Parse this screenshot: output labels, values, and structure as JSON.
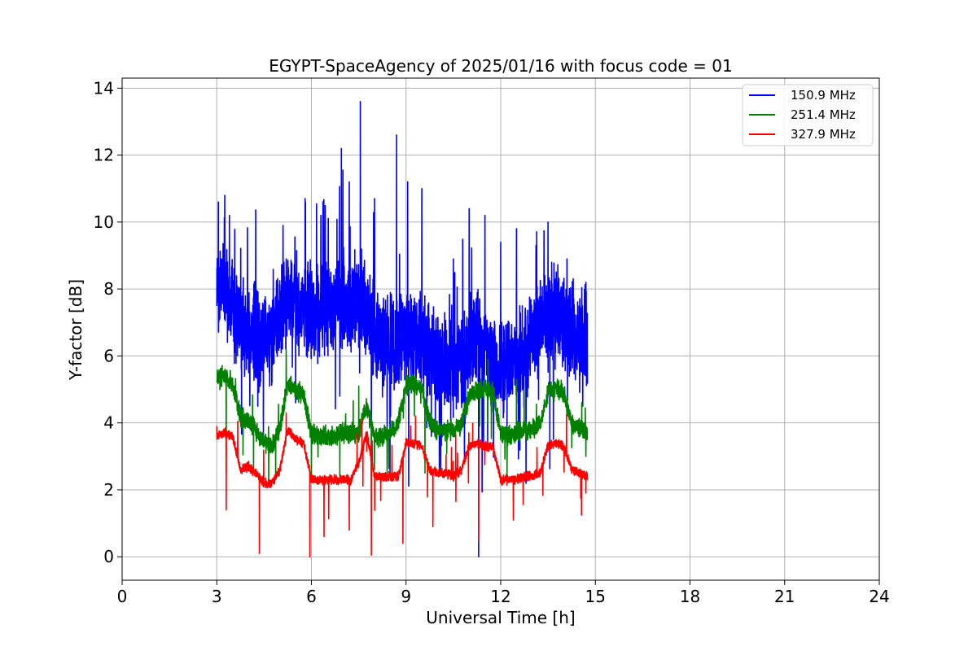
{
  "chart_data": {
    "type": "line",
    "title": "EGYPT-SpaceAgency of 2025/01/16 with focus code = 01",
    "xlabel": "Universal Time [h]",
    "ylabel": "Y-factor [dB]",
    "xlim": [
      0,
      24
    ],
    "ylim": [
      -0.7,
      14.3
    ],
    "xticks": [
      0,
      3,
      6,
      9,
      12,
      15,
      18,
      21,
      24
    ],
    "yticks": [
      0,
      2,
      4,
      6,
      8,
      10,
      12,
      14
    ],
    "grid": true,
    "legend_position": "top-right",
    "series": [
      {
        "name": "150.9 MHz",
        "color": "#0000ff",
        "x": [
          3.0,
          3.25,
          3.5,
          3.75,
          4.0,
          4.25,
          4.5,
          4.75,
          5.0,
          5.25,
          5.5,
          5.75,
          6.0,
          6.25,
          6.5,
          6.75,
          7.0,
          7.25,
          7.5,
          7.75,
          8.0,
          8.25,
          8.5,
          8.75,
          9.0,
          9.25,
          9.5,
          9.75,
          10.0,
          10.25,
          10.5,
          10.75,
          11.0,
          11.25,
          11.5,
          11.75,
          12.0,
          12.25,
          12.5,
          12.75,
          13.0,
          13.25,
          13.5,
          13.75,
          14.0,
          14.25,
          14.5,
          14.75
        ],
        "values": [
          8.2,
          7.9,
          7.5,
          7.0,
          6.6,
          6.5,
          6.5,
          6.7,
          7.2,
          7.6,
          7.6,
          7.4,
          7.3,
          7.4,
          7.6,
          7.7,
          7.8,
          7.6,
          7.7,
          7.4,
          6.6,
          6.4,
          6.3,
          6.5,
          6.6,
          6.5,
          6.3,
          6.1,
          5.9,
          5.7,
          5.6,
          5.8,
          6.2,
          6.5,
          6.3,
          5.9,
          5.6,
          5.6,
          5.8,
          6.2,
          6.6,
          7.0,
          7.1,
          7.2,
          7.0,
          6.8,
          6.6,
          6.5
        ],
        "spikes_max": [
          [
            3.05,
            10.6
          ],
          [
            3.4,
            10.2
          ],
          [
            4.3,
            8.5
          ],
          [
            5.1,
            9.9
          ],
          [
            5.8,
            10.7
          ],
          [
            6.3,
            10.2
          ],
          [
            6.95,
            12.2
          ],
          [
            7.2,
            11.2
          ],
          [
            7.55,
            13.6
          ],
          [
            8.0,
            10.7
          ],
          [
            8.7,
            12.6
          ],
          [
            9.05,
            11.2
          ],
          [
            9.5,
            11.0
          ],
          [
            10.5,
            8.9
          ],
          [
            11.0,
            10.4
          ],
          [
            11.5,
            10.2
          ],
          [
            12.0,
            9.4
          ],
          [
            12.5,
            9.8
          ],
          [
            13.5,
            10.0
          ],
          [
            14.1,
            8.9
          ],
          [
            14.7,
            8.2
          ]
        ],
        "spikes_min": [
          [
            11.3,
            0.0
          ],
          [
            4.3,
            4.5
          ],
          [
            5.5,
            4.6
          ],
          [
            6.9,
            4.8
          ],
          [
            7.9,
            3.8
          ],
          [
            8.4,
            3.5
          ],
          [
            9.8,
            3.6
          ],
          [
            12.2,
            3.9
          ],
          [
            13.2,
            4.7
          ],
          [
            14.6,
            4.5
          ]
        ]
      },
      {
        "name": "251.4 MHz",
        "color": "#008000",
        "x": [
          3.0,
          3.25,
          3.5,
          3.75,
          4.0,
          4.25,
          4.5,
          4.75,
          5.0,
          5.25,
          5.5,
          5.75,
          6.0,
          6.25,
          6.5,
          6.75,
          7.0,
          7.25,
          7.5,
          7.75,
          8.0,
          8.25,
          8.5,
          8.75,
          9.0,
          9.25,
          9.5,
          9.75,
          10.0,
          10.25,
          10.5,
          10.75,
          11.0,
          11.25,
          11.5,
          11.75,
          12.0,
          12.25,
          12.5,
          12.75,
          13.0,
          13.25,
          13.5,
          13.75,
          14.0,
          14.25,
          14.5,
          14.75
        ],
        "values": [
          5.3,
          5.4,
          5.2,
          4.2,
          4.0,
          3.8,
          3.4,
          3.3,
          3.8,
          5.2,
          5.0,
          4.8,
          3.7,
          3.6,
          3.6,
          3.6,
          3.7,
          3.7,
          3.7,
          4.5,
          3.6,
          3.6,
          3.7,
          4.0,
          5.1,
          5.2,
          5.0,
          4.0,
          3.8,
          3.8,
          3.8,
          3.9,
          4.8,
          5.0,
          5.0,
          4.9,
          3.7,
          3.6,
          3.7,
          3.8,
          3.8,
          4.0,
          4.9,
          5.0,
          4.9,
          4.0,
          3.8,
          3.7
        ],
        "spikes_max": [
          [
            5.2,
            6.2
          ],
          [
            7.5,
            5.1
          ],
          [
            11.6,
            5.9
          ],
          [
            12.5,
            5.3
          ]
        ],
        "spikes_min": [
          [
            3.3,
            2.5
          ],
          [
            6.0,
            2.3
          ],
          [
            6.9,
            2.4
          ],
          [
            7.9,
            2.3
          ],
          [
            8.4,
            2.3
          ],
          [
            9.6,
            2.5
          ],
          [
            12.2,
            2.4
          ],
          [
            14.7,
            3.0
          ]
        ]
      },
      {
        "name": "327.9 MHz",
        "color": "#ff0000",
        "x": [
          3.0,
          3.25,
          3.5,
          3.75,
          4.0,
          4.25,
          4.5,
          4.75,
          5.0,
          5.25,
          5.5,
          5.75,
          6.0,
          6.25,
          6.5,
          6.75,
          7.0,
          7.25,
          7.5,
          7.75,
          8.0,
          8.25,
          8.5,
          8.75,
          9.0,
          9.25,
          9.5,
          9.75,
          10.0,
          10.25,
          10.5,
          10.75,
          11.0,
          11.25,
          11.5,
          11.75,
          12.0,
          12.25,
          12.5,
          12.75,
          13.0,
          13.25,
          13.5,
          13.75,
          14.0,
          14.25,
          14.5,
          14.75
        ],
        "values": [
          3.6,
          3.7,
          3.6,
          2.6,
          2.7,
          2.5,
          2.2,
          2.2,
          2.6,
          3.8,
          3.5,
          3.4,
          2.3,
          2.3,
          2.3,
          2.3,
          2.3,
          2.3,
          2.8,
          3.7,
          2.4,
          2.4,
          2.4,
          2.4,
          3.4,
          3.4,
          3.3,
          2.6,
          2.5,
          2.5,
          2.4,
          2.6,
          3.3,
          3.4,
          3.3,
          3.3,
          2.3,
          2.3,
          2.3,
          2.4,
          2.4,
          2.5,
          3.3,
          3.4,
          3.3,
          2.6,
          2.5,
          2.4
        ],
        "spikes_max": [
          [
            3.0,
            3.9
          ],
          [
            5.2,
            4.3
          ],
          [
            7.6,
            4.1
          ],
          [
            9.3,
            4.2
          ]
        ],
        "spikes_min": [
          [
            3.3,
            1.4
          ],
          [
            4.35,
            0.1
          ],
          [
            5.95,
            0.0
          ],
          [
            6.4,
            0.6
          ],
          [
            7.2,
            0.8
          ],
          [
            7.9,
            0.05
          ],
          [
            8.9,
            0.4
          ],
          [
            9.85,
            0.9
          ],
          [
            11.3,
            0.5
          ],
          [
            12.4,
            1.1
          ],
          [
            14.7,
            1.9
          ]
        ]
      }
    ]
  }
}
